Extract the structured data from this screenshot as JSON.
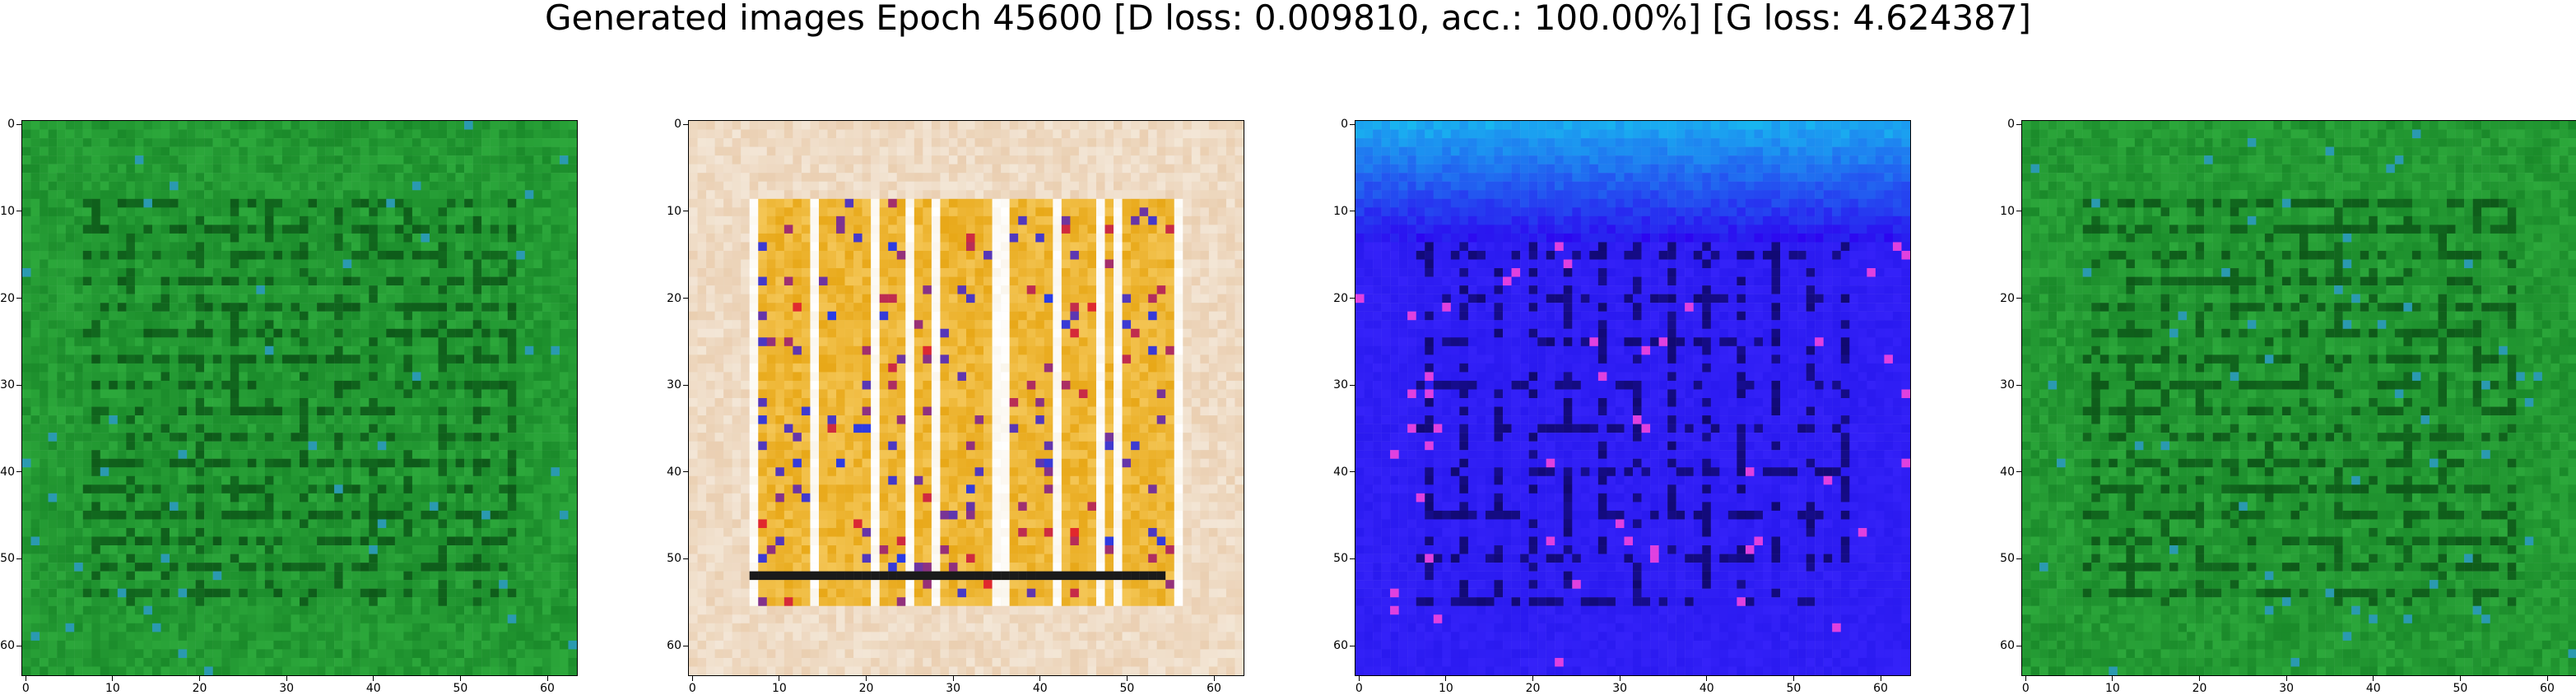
{
  "figure": {
    "title": "Generated images Epoch 45600 [D loss: 0.009810, acc.: 100.00%] [G loss: 4.624387]"
  },
  "panels": [
    {
      "name": "panel-1",
      "description_colors": {
        "base": "#1a8a2a",
        "light": "#3cc24a",
        "dark": "#0a4a14",
        "accent": "#2a9ab0"
      },
      "accent_style": "grid",
      "x_ticks": [
        "0",
        "10",
        "20",
        "30",
        "40",
        "50",
        "60"
      ],
      "y_ticks": [
        "0",
        "10",
        "20",
        "30",
        "40",
        "50",
        "60"
      ]
    },
    {
      "name": "panel-2",
      "description_colors": {
        "base": "#e8c9a8",
        "light": "#f3e6d6",
        "dark": "#1a1a1a",
        "accent": "#e8a818"
      },
      "accent_style": "bars",
      "x_ticks": [
        "0",
        "10",
        "20",
        "30",
        "40",
        "50",
        "60"
      ],
      "y_ticks": [
        "0",
        "10",
        "20",
        "30",
        "40",
        "50",
        "60"
      ]
    },
    {
      "name": "panel-3",
      "description_colors": {
        "base": "#2a1af0",
        "light": "#18b8f0",
        "dark": "#0a0450",
        "accent": "#e040e0"
      },
      "accent_style": "grid-blue",
      "x_ticks": [
        "0",
        "10",
        "20",
        "30",
        "40",
        "50",
        "60"
      ],
      "y_ticks": [
        "0",
        "10",
        "20",
        "30",
        "40",
        "50",
        "60"
      ]
    },
    {
      "name": "panel-4",
      "description_colors": {
        "base": "#1a8a2a",
        "light": "#3cc24a",
        "dark": "#0a4a14",
        "accent": "#2a9ab0"
      },
      "accent_style": "grid",
      "x_ticks": [
        "0",
        "10",
        "20",
        "30",
        "40",
        "50",
        "60"
      ],
      "y_ticks": [
        "0",
        "10",
        "20",
        "30",
        "40",
        "50",
        "60"
      ]
    }
  ]
}
